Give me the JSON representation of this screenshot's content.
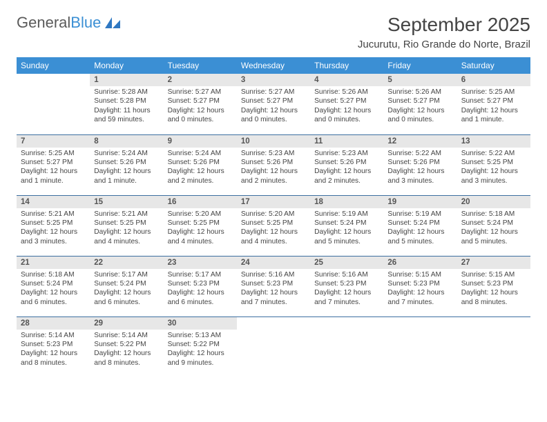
{
  "logo": {
    "text_main": "General",
    "text_accent": "Blue"
  },
  "title": "September 2025",
  "location": "Jucurutu, Rio Grande do Norte, Brazil",
  "colors": {
    "header_bg": "#3b8fd4",
    "header_text": "#ffffff",
    "daynum_bg": "#e7e7e7",
    "row_border": "#3b6ea0",
    "body_text": "#444444",
    "logo_main": "#5a5a5a",
    "logo_accent": "#3b8fd4"
  },
  "day_headers": [
    "Sunday",
    "Monday",
    "Tuesday",
    "Wednesday",
    "Thursday",
    "Friday",
    "Saturday"
  ],
  "weeks": [
    [
      {
        "n": "",
        "sr": "",
        "ss": "",
        "dl": ""
      },
      {
        "n": "1",
        "sr": "Sunrise: 5:28 AM",
        "ss": "Sunset: 5:28 PM",
        "dl": "Daylight: 11 hours and 59 minutes."
      },
      {
        "n": "2",
        "sr": "Sunrise: 5:27 AM",
        "ss": "Sunset: 5:27 PM",
        "dl": "Daylight: 12 hours and 0 minutes."
      },
      {
        "n": "3",
        "sr": "Sunrise: 5:27 AM",
        "ss": "Sunset: 5:27 PM",
        "dl": "Daylight: 12 hours and 0 minutes."
      },
      {
        "n": "4",
        "sr": "Sunrise: 5:26 AM",
        "ss": "Sunset: 5:27 PM",
        "dl": "Daylight: 12 hours and 0 minutes."
      },
      {
        "n": "5",
        "sr": "Sunrise: 5:26 AM",
        "ss": "Sunset: 5:27 PM",
        "dl": "Daylight: 12 hours and 0 minutes."
      },
      {
        "n": "6",
        "sr": "Sunrise: 5:25 AM",
        "ss": "Sunset: 5:27 PM",
        "dl": "Daylight: 12 hours and 1 minute."
      }
    ],
    [
      {
        "n": "7",
        "sr": "Sunrise: 5:25 AM",
        "ss": "Sunset: 5:27 PM",
        "dl": "Daylight: 12 hours and 1 minute."
      },
      {
        "n": "8",
        "sr": "Sunrise: 5:24 AM",
        "ss": "Sunset: 5:26 PM",
        "dl": "Daylight: 12 hours and 1 minute."
      },
      {
        "n": "9",
        "sr": "Sunrise: 5:24 AM",
        "ss": "Sunset: 5:26 PM",
        "dl": "Daylight: 12 hours and 2 minutes."
      },
      {
        "n": "10",
        "sr": "Sunrise: 5:23 AM",
        "ss": "Sunset: 5:26 PM",
        "dl": "Daylight: 12 hours and 2 minutes."
      },
      {
        "n": "11",
        "sr": "Sunrise: 5:23 AM",
        "ss": "Sunset: 5:26 PM",
        "dl": "Daylight: 12 hours and 2 minutes."
      },
      {
        "n": "12",
        "sr": "Sunrise: 5:22 AM",
        "ss": "Sunset: 5:26 PM",
        "dl": "Daylight: 12 hours and 3 minutes."
      },
      {
        "n": "13",
        "sr": "Sunrise: 5:22 AM",
        "ss": "Sunset: 5:25 PM",
        "dl": "Daylight: 12 hours and 3 minutes."
      }
    ],
    [
      {
        "n": "14",
        "sr": "Sunrise: 5:21 AM",
        "ss": "Sunset: 5:25 PM",
        "dl": "Daylight: 12 hours and 3 minutes."
      },
      {
        "n": "15",
        "sr": "Sunrise: 5:21 AM",
        "ss": "Sunset: 5:25 PM",
        "dl": "Daylight: 12 hours and 4 minutes."
      },
      {
        "n": "16",
        "sr": "Sunrise: 5:20 AM",
        "ss": "Sunset: 5:25 PM",
        "dl": "Daylight: 12 hours and 4 minutes."
      },
      {
        "n": "17",
        "sr": "Sunrise: 5:20 AM",
        "ss": "Sunset: 5:25 PM",
        "dl": "Daylight: 12 hours and 4 minutes."
      },
      {
        "n": "18",
        "sr": "Sunrise: 5:19 AM",
        "ss": "Sunset: 5:24 PM",
        "dl": "Daylight: 12 hours and 5 minutes."
      },
      {
        "n": "19",
        "sr": "Sunrise: 5:19 AM",
        "ss": "Sunset: 5:24 PM",
        "dl": "Daylight: 12 hours and 5 minutes."
      },
      {
        "n": "20",
        "sr": "Sunrise: 5:18 AM",
        "ss": "Sunset: 5:24 PM",
        "dl": "Daylight: 12 hours and 5 minutes."
      }
    ],
    [
      {
        "n": "21",
        "sr": "Sunrise: 5:18 AM",
        "ss": "Sunset: 5:24 PM",
        "dl": "Daylight: 12 hours and 6 minutes."
      },
      {
        "n": "22",
        "sr": "Sunrise: 5:17 AM",
        "ss": "Sunset: 5:24 PM",
        "dl": "Daylight: 12 hours and 6 minutes."
      },
      {
        "n": "23",
        "sr": "Sunrise: 5:17 AM",
        "ss": "Sunset: 5:23 PM",
        "dl": "Daylight: 12 hours and 6 minutes."
      },
      {
        "n": "24",
        "sr": "Sunrise: 5:16 AM",
        "ss": "Sunset: 5:23 PM",
        "dl": "Daylight: 12 hours and 7 minutes."
      },
      {
        "n": "25",
        "sr": "Sunrise: 5:16 AM",
        "ss": "Sunset: 5:23 PM",
        "dl": "Daylight: 12 hours and 7 minutes."
      },
      {
        "n": "26",
        "sr": "Sunrise: 5:15 AM",
        "ss": "Sunset: 5:23 PM",
        "dl": "Daylight: 12 hours and 7 minutes."
      },
      {
        "n": "27",
        "sr": "Sunrise: 5:15 AM",
        "ss": "Sunset: 5:23 PM",
        "dl": "Daylight: 12 hours and 8 minutes."
      }
    ],
    [
      {
        "n": "28",
        "sr": "Sunrise: 5:14 AM",
        "ss": "Sunset: 5:23 PM",
        "dl": "Daylight: 12 hours and 8 minutes."
      },
      {
        "n": "29",
        "sr": "Sunrise: 5:14 AM",
        "ss": "Sunset: 5:22 PM",
        "dl": "Daylight: 12 hours and 8 minutes."
      },
      {
        "n": "30",
        "sr": "Sunrise: 5:13 AM",
        "ss": "Sunset: 5:22 PM",
        "dl": "Daylight: 12 hours and 9 minutes."
      },
      {
        "n": "",
        "sr": "",
        "ss": "",
        "dl": ""
      },
      {
        "n": "",
        "sr": "",
        "ss": "",
        "dl": ""
      },
      {
        "n": "",
        "sr": "",
        "ss": "",
        "dl": ""
      },
      {
        "n": "",
        "sr": "",
        "ss": "",
        "dl": ""
      }
    ]
  ]
}
